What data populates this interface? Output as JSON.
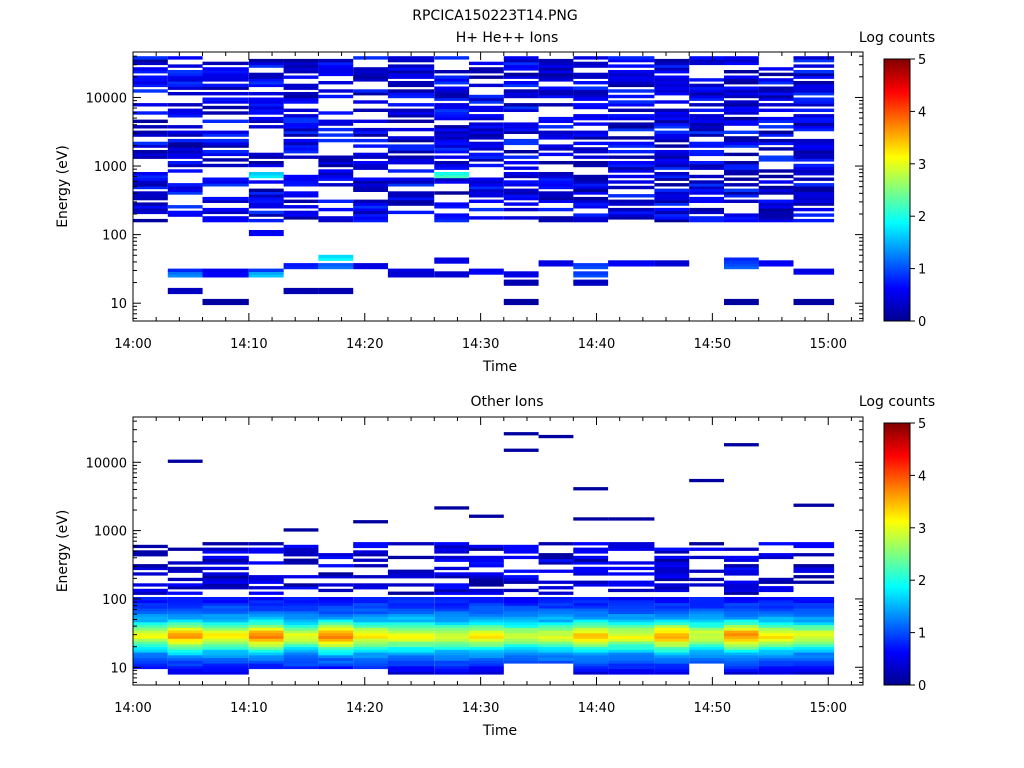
{
  "figure_title": "RPCICA150223T14.PNG",
  "colorscale": [
    "#00008f",
    "#0000ff",
    "#0080ff",
    "#00ffff",
    "#80ff80",
    "#ffff00",
    "#ff8000",
    "#ff0000",
    "#800000"
  ],
  "chart_data": [
    {
      "type": "heatmap",
      "title": "H+ He++ Ions",
      "xlabel": "Time",
      "ylabel": "Energy (eV)",
      "y_scale": "log",
      "ylim": [
        5.5,
        46000
      ],
      "x_range": [
        "14:00",
        "15:03"
      ],
      "x_ticks": [
        "14:00",
        "14:10",
        "14:20",
        "14:30",
        "14:40",
        "14:50",
        "15:00"
      ],
      "y_ticks": [
        {
          "value": 10,
          "label": "10"
        },
        {
          "value": 100,
          "label": "100"
        },
        {
          "value": 1000,
          "label": "1000"
        },
        {
          "value": 10000,
          "label": "10000"
        }
      ],
      "colorbar": {
        "label": "Log counts",
        "min": 0,
        "max": 5,
        "ticks": [
          "0",
          "1",
          "2",
          "3",
          "4",
          "5"
        ]
      },
      "time_bins": [
        "14:00",
        "14:03",
        "14:06",
        "14:10",
        "14:13",
        "14:16",
        "14:19",
        "14:22",
        "14:26",
        "14:29",
        "14:32",
        "14:35",
        "14:38",
        "14:41",
        "14:45",
        "14:48",
        "14:51",
        "14:54",
        "14:57"
      ],
      "energy_range_eV": [
        5.5,
        40000
      ],
      "energy_bins": 96,
      "description": "sparse 0.2-1.2 log counts across 100-40000 eV; isolated low-energy enhancements 15-50 eV reaching ~1.5-2 log counts",
      "seed": 7,
      "density": 0.62,
      "high_min": 150,
      "high_max": 40000,
      "high_level": [
        0.05,
        0.9
      ],
      "low_cells": [
        [
          1,
          29,
          0.9
        ],
        [
          1,
          26,
          1.3
        ],
        [
          1,
          14,
          0.3
        ],
        [
          2,
          26,
          0.6
        ],
        [
          2,
          29,
          0.6
        ],
        [
          2,
          10,
          0.1
        ],
        [
          3,
          29,
          1.0
        ],
        [
          3,
          26,
          1.6
        ],
        [
          3,
          100,
          0.6
        ],
        [
          3,
          700,
          1.8
        ],
        [
          4,
          33,
          0.8
        ],
        [
          4,
          14,
          0.2
        ],
        [
          5,
          45,
          1.9
        ],
        [
          5,
          33,
          1.2
        ],
        [
          5,
          14,
          0.2
        ],
        [
          6,
          33,
          0.5
        ],
        [
          7,
          29,
          0.5
        ],
        [
          7,
          26,
          0.4
        ],
        [
          8,
          26,
          0.4
        ],
        [
          8,
          42,
          0.5
        ],
        [
          8,
          700,
          2.2
        ],
        [
          9,
          29,
          0.6
        ],
        [
          10,
          26,
          0.5
        ],
        [
          10,
          20,
          0.2
        ],
        [
          10,
          10,
          0.1
        ],
        [
          11,
          37,
          0.5
        ],
        [
          12,
          33,
          1.0
        ],
        [
          12,
          26,
          1.0
        ],
        [
          12,
          20,
          0.3
        ],
        [
          13,
          37,
          0.6
        ],
        [
          14,
          37,
          0.4
        ],
        [
          16,
          42,
          0.9
        ],
        [
          16,
          33,
          1.1
        ],
        [
          16,
          10,
          0.1
        ],
        [
          17,
          37,
          0.6
        ],
        [
          18,
          29,
          0.5
        ],
        [
          18,
          10,
          0.1
        ]
      ]
    },
    {
      "type": "heatmap",
      "title": "Other Ions",
      "xlabel": "Time",
      "ylabel": "Energy (eV)",
      "y_scale": "log",
      "ylim": [
        5.5,
        46000
      ],
      "x_range": [
        "14:00",
        "15:03"
      ],
      "x_ticks": [
        "14:00",
        "14:10",
        "14:20",
        "14:30",
        "14:40",
        "14:50",
        "15:00"
      ],
      "y_ticks": [
        {
          "value": 10,
          "label": "10"
        },
        {
          "value": 100,
          "label": "100"
        },
        {
          "value": 1000,
          "label": "1000"
        },
        {
          "value": 10000,
          "label": "10000"
        }
      ],
      "colorbar": {
        "label": "Log counts",
        "min": 0,
        "max": 5,
        "ticks": [
          "0",
          "1",
          "2",
          "3",
          "4",
          "5"
        ]
      },
      "time_bins": [
        "14:00",
        "14:03",
        "14:06",
        "14:10",
        "14:13",
        "14:16",
        "14:19",
        "14:22",
        "14:26",
        "14:29",
        "14:32",
        "14:35",
        "14:38",
        "14:41",
        "14:45",
        "14:48",
        "14:51",
        "14:54",
        "14:57"
      ],
      "energy_range_eV": [
        5.5,
        40000
      ],
      "energy_bins": 96,
      "description": "persistent band 20-45 eV at 2-3.8 log counts, peaks ~3.8 at 30 eV; ~1 log count 45-120 eV; sparse 0.2-0.8 above 150 eV",
      "seed": 19,
      "density": 0.5,
      "high_min": 120,
      "high_max": 700,
      "high_level": [
        0.05,
        0.7
      ],
      "band_profile": [
        {
          "e": 8,
          "v": 0.3
        },
        {
          "e": 11,
          "v": 0.9
        },
        {
          "e": 15,
          "v": 1.3
        },
        {
          "e": 19,
          "v": 2.0
        },
        {
          "e": 23,
          "v": 2.7
        },
        {
          "e": 28,
          "v": 3.3
        },
        {
          "e": 33,
          "v": 3.1
        },
        {
          "e": 40,
          "v": 2.4
        },
        {
          "e": 48,
          "v": 1.7
        },
        {
          "e": 60,
          "v": 1.2
        },
        {
          "e": 80,
          "v": 0.9
        },
        {
          "e": 110,
          "v": 0.6
        }
      ],
      "band_peak": [
        3.0,
        3.6,
        3.2,
        3.7,
        3.0,
        3.8,
        3.2,
        3.1,
        3.0,
        3.2,
        2.9,
        3.0,
        3.4,
        3.1,
        3.6,
        3.0,
        3.7,
        3.2,
        3.0
      ],
      "empty_low": [
        [
          0,
          6,
          10
        ],
        [
          3,
          6,
          10
        ],
        [
          4,
          6,
          10
        ],
        [
          5,
          6,
          10
        ],
        [
          6,
          6,
          10
        ],
        [
          10,
          6,
          12
        ],
        [
          11,
          6,
          12
        ],
        [
          15,
          6,
          12
        ]
      ],
      "sparse_lines": [
        [
          1,
          10000
        ],
        [
          8,
          2200
        ],
        [
          9,
          1700
        ],
        [
          10,
          27000
        ],
        [
          10,
          15000
        ],
        [
          11,
          23000
        ],
        [
          12,
          4000
        ],
        [
          12,
          1450
        ],
        [
          13,
          1450
        ],
        [
          15,
          5500
        ],
        [
          16,
          18000
        ],
        [
          18,
          2300
        ],
        [
          4,
          1000
        ],
        [
          6,
          1300
        ]
      ]
    }
  ]
}
